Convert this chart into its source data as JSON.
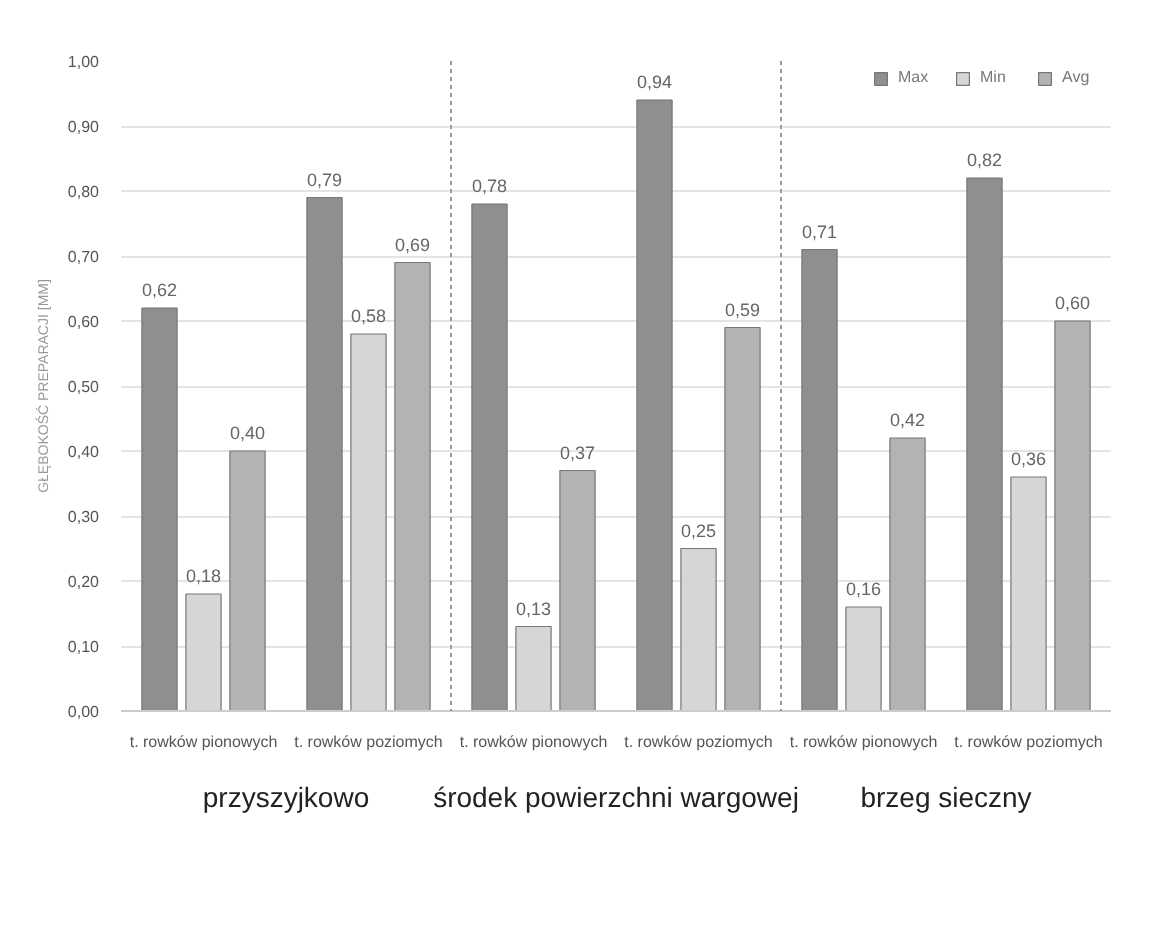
{
  "chart_data": {
    "type": "bar",
    "ylabel": "GŁĘBOKOŚĆ PREPARACJI [MM]",
    "categories": [
      "t. rowków pionowych",
      "t. rowków poziomych",
      "t. rowków pionowych",
      "t. rowków poziomych",
      "t. rowków pionowych",
      "t. rowków poziomych"
    ],
    "annotations": [
      "przyszyjkowo",
      "środek powierzchni wargowej",
      "brzeg sieczny"
    ],
    "series": [
      {
        "name": "Max",
        "color": "#8f8f8f",
        "values": [
          0.62,
          0.79,
          0.78,
          0.94,
          0.71,
          0.82
        ],
        "value_labels": [
          "0,62",
          "0,79",
          "0,78",
          "0,94",
          "0,71",
          "0,82"
        ]
      },
      {
        "name": "Min",
        "color": "#d6d6d6",
        "values": [
          0.18,
          0.58,
          0.13,
          0.25,
          0.16,
          0.36
        ],
        "value_labels": [
          "0,18",
          "0,58",
          "0,13",
          "0,25",
          "0,16",
          "0,36"
        ]
      },
      {
        "name": "Avg",
        "color": "#b3b3b3",
        "values": [
          0.4,
          0.69,
          0.37,
          0.59,
          0.42,
          0.6
        ],
        "value_labels": [
          "0,40",
          "0,69",
          "0,37",
          "0,59",
          "0,42",
          "0,60"
        ]
      }
    ],
    "ylim": [
      0,
      1.0
    ],
    "yticks": [
      {
        "value": 0,
        "label": "0,00"
      },
      {
        "value": 0.1,
        "label": "0,10"
      },
      {
        "value": 0.2,
        "label": "0,20"
      },
      {
        "value": 0.3,
        "label": "0,30"
      },
      {
        "value": 0.4,
        "label": "0,40"
      },
      {
        "value": 0.5,
        "label": "0,50"
      },
      {
        "value": 0.6,
        "label": "0,60"
      },
      {
        "value": 0.7,
        "label": "0,70"
      },
      {
        "value": 0.8,
        "label": "0,80"
      },
      {
        "value": 0.9,
        "label": "0,90"
      },
      {
        "value": 1.0,
        "label": "1,00"
      }
    ],
    "grid": "y",
    "legend": "top right"
  }
}
